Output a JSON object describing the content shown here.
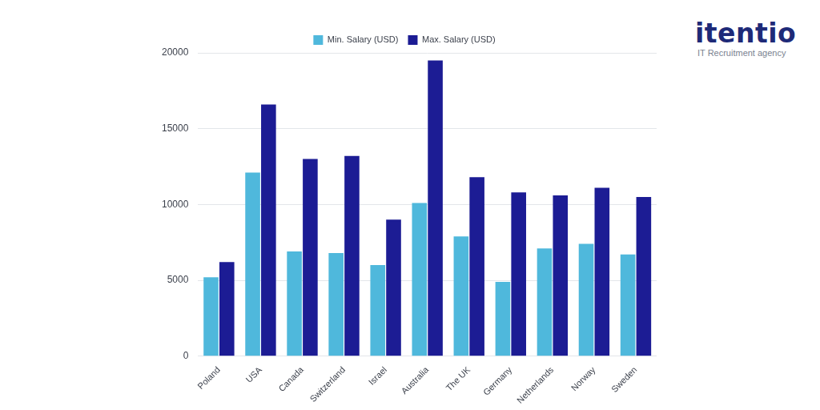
{
  "chart_data": {
    "type": "bar",
    "categories": [
      "Poland",
      "USA",
      "Canada",
      "Switzerland",
      "Israel",
      "Australia",
      "The UK",
      "Germany",
      "Netherlands",
      "Norway",
      "Sweden"
    ],
    "series": [
      {
        "name": "Min. Salary (USD)",
        "color": "#4fb8dc",
        "values": [
          5200,
          12100,
          6900,
          6800,
          6000,
          10100,
          7900,
          4900,
          7100,
          7400,
          6700
        ]
      },
      {
        "name": "Max. Salary (USD)",
        "color": "#1c1c94",
        "values": [
          6200,
          16600,
          13000,
          13200,
          9000,
          19500,
          11800,
          10800,
          10600,
          11100,
          10500
        ]
      }
    ],
    "ylim": [
      0,
      20000
    ],
    "yticks": [
      0,
      5000,
      10000,
      15000,
      20000
    ],
    "grid": true,
    "legend": "top"
  },
  "brand": {
    "name": "itentio",
    "tagline": "IT Recruitment agency"
  }
}
